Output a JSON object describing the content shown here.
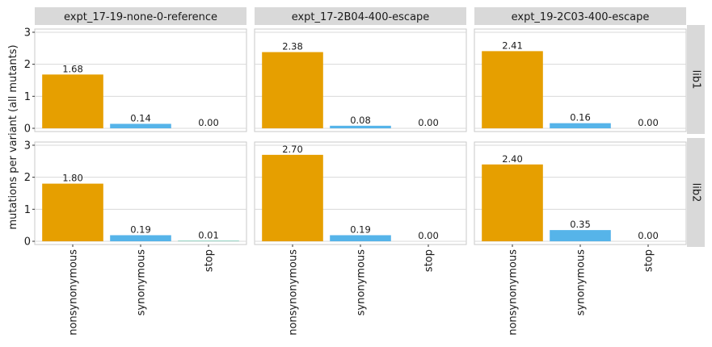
{
  "chart_data": {
    "type": "bar",
    "ylabel": "mutations per variant (all mutants)",
    "xlabel": "",
    "ylim": [
      0,
      3.1
    ],
    "yticks": [
      0,
      1,
      2,
      3
    ],
    "grid": true,
    "categories": [
      "nonsynonymous",
      "synonymous",
      "stop"
    ],
    "category_colors": {
      "nonsynonymous": "#E69F00",
      "synonymous": "#56B4E9",
      "stop": "#009E73"
    },
    "columns": [
      "expt_17-19-none-0-reference",
      "expt_17-2B04-400-escape",
      "expt_19-2C03-400-escape"
    ],
    "rows": [
      "lib1",
      "lib2"
    ],
    "panels": [
      {
        "column": "expt_17-19-none-0-reference",
        "row": "lib1",
        "values": [
          1.68,
          0.14,
          0.0
        ],
        "labels": [
          "1.68",
          "0.14",
          "0.00"
        ]
      },
      {
        "column": "expt_17-2B04-400-escape",
        "row": "lib1",
        "values": [
          2.38,
          0.08,
          0.0
        ],
        "labels": [
          "2.38",
          "0.08",
          "0.00"
        ]
      },
      {
        "column": "expt_19-2C03-400-escape",
        "row": "lib1",
        "values": [
          2.41,
          0.16,
          0.0
        ],
        "labels": [
          "2.41",
          "0.16",
          "0.00"
        ]
      },
      {
        "column": "expt_17-19-none-0-reference",
        "row": "lib2",
        "values": [
          1.8,
          0.19,
          0.01
        ],
        "labels": [
          "1.80",
          "0.19",
          "0.01"
        ]
      },
      {
        "column": "expt_17-2B04-400-escape",
        "row": "lib2",
        "values": [
          2.7,
          0.19,
          0.0
        ],
        "labels": [
          "2.70",
          "0.19",
          "0.00"
        ]
      },
      {
        "column": "expt_19-2C03-400-escape",
        "row": "lib2",
        "values": [
          2.4,
          0.35,
          0.0
        ],
        "labels": [
          "2.40",
          "0.35",
          "0.00"
        ]
      }
    ]
  },
  "style": {
    "strip_fill": "#d9d9d9",
    "grid_color": "#d9d9d9",
    "panel_border": "#c8c8c8"
  }
}
